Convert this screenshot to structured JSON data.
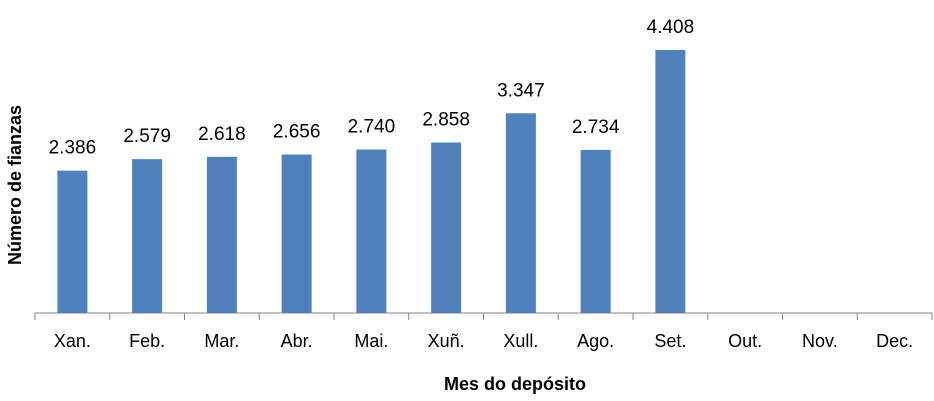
{
  "chart_data": {
    "type": "bar",
    "x_label": "Mes do depósito",
    "y_label": "Número de fianzas",
    "categories": [
      "Xan.",
      "Feb.",
      "Mar.",
      "Abr.",
      "Mai.",
      "Xuñ.",
      "Xull.",
      "Ago.",
      "Set.",
      "Out.",
      "Nov.",
      "Dec."
    ],
    "values": [
      2386,
      2579,
      2618,
      2656,
      2740,
      2858,
      3347,
      2734,
      4408,
      null,
      null,
      null
    ],
    "value_labels": [
      "2.386",
      "2.579",
      "2.618",
      "2.656",
      "2.740",
      "2.858",
      "3.347",
      "2.734",
      "4.408",
      null,
      null,
      null
    ],
    "color": "#4f81bd"
  }
}
